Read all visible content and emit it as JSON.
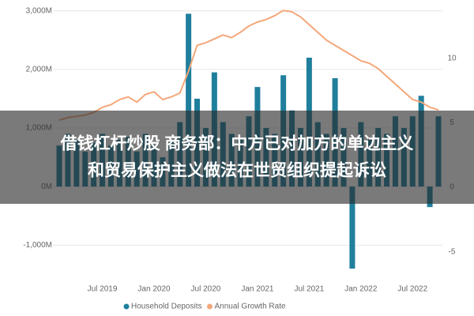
{
  "chart_data": {
    "type": "bar-line",
    "categories": [
      null,
      null,
      null,
      null,
      null,
      "Jul 2019",
      null,
      null,
      null,
      null,
      null,
      "Jan 2020",
      null,
      null,
      null,
      null,
      null,
      "Jul 2020",
      null,
      null,
      null,
      null,
      null,
      "Jan 2021",
      null,
      null,
      null,
      null,
      null,
      "Jul 2021",
      null,
      null,
      null,
      null,
      null,
      "Jan 2022",
      null,
      null,
      null,
      null,
      null,
      "Jul 2022",
      null,
      null,
      null
    ],
    "series": [
      {
        "name": "Household Deposits",
        "type": "bar",
        "color": "#1f7f9c",
        "values": [
          700,
          900,
          800,
          600,
          750,
          900,
          700,
          800,
          850,
          600,
          900,
          700,
          500,
          800,
          1100,
          2950,
          1500,
          1000,
          1950,
          1100,
          900,
          800,
          1200,
          1700,
          1000,
          900,
          1900,
          1300,
          1000,
          2200,
          1100,
          900,
          1850,
          1000,
          -1400,
          1100,
          800,
          1000,
          900,
          1200,
          1000,
          1200,
          1550,
          -350,
          1200
        ]
      },
      {
        "name": "Annual Growth Rate",
        "type": "line",
        "axis": "y2",
        "color": "#f4a77a",
        "values": [
          5.2,
          5.4,
          5.5,
          5.6,
          5.8,
          6.2,
          6.4,
          6.8,
          7.0,
          6.6,
          7.2,
          7.4,
          6.8,
          7.0,
          7.3,
          9.0,
          11.0,
          11.2,
          11.5,
          11.8,
          11.6,
          12.0,
          12.5,
          12.8,
          13.0,
          13.3,
          13.7,
          13.6,
          13.2,
          12.6,
          12.0,
          11.4,
          11.0,
          10.6,
          10.2,
          9.8,
          9.6,
          9.2,
          8.6,
          8.0,
          7.4,
          6.8,
          6.6,
          6.2,
          6.0
        ]
      }
    ],
    "ylim": [
      -1400,
      3050
    ],
    "yticks": [
      {
        "value": -1000,
        "label": "-1,000M"
      },
      {
        "value": 0,
        "label": "0M"
      },
      {
        "value": 1000,
        "label": "1,000M"
      },
      {
        "value": 2000,
        "label": "2,000M"
      },
      {
        "value": 3000,
        "label": "3,000M"
      }
    ],
    "y2lim": [
      -6.3,
      13.9
    ],
    "y2ticks": [
      -5,
      0,
      5,
      10
    ],
    "legend": "bottom",
    "overlay_text": [
      "借钱杠杆炒股 商务部：中方已对加方的单边主义",
      "和贸易保护主义做法在世贸组织提起诉讼"
    ]
  }
}
